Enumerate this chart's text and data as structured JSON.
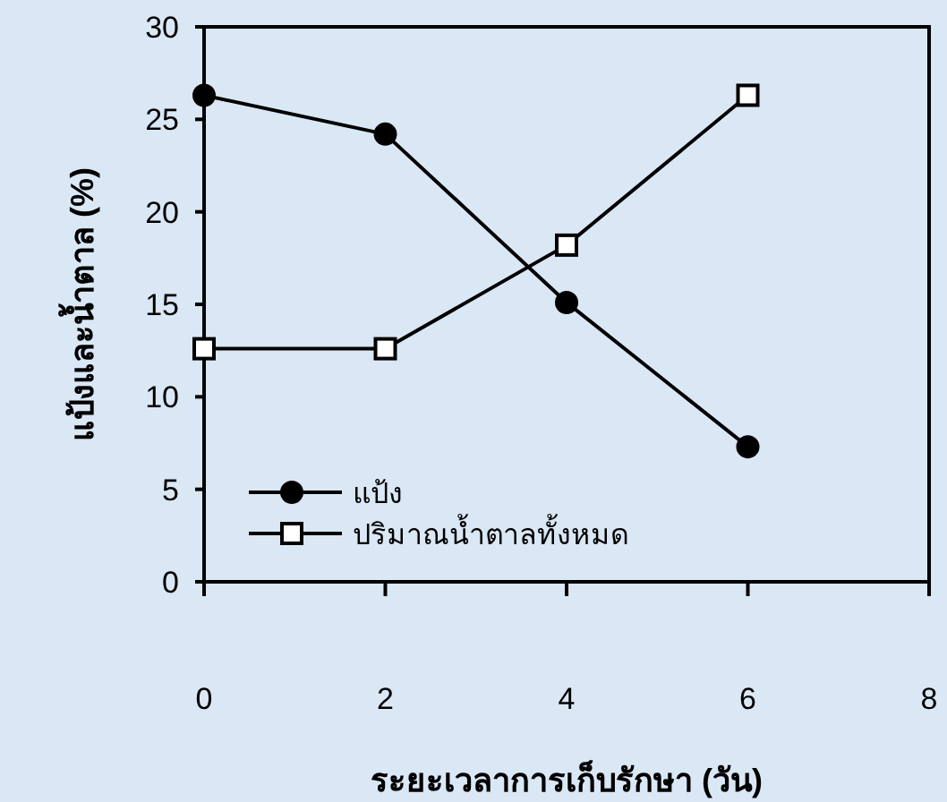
{
  "chart_data": {
    "type": "line",
    "xlabel": "ระยะเวลาการเก็บรักษา (วัน)",
    "ylabel": "แป้งและน้ำตาล (%)",
    "x": [
      0,
      2,
      4,
      6
    ],
    "xlim": [
      0,
      8
    ],
    "xticks": [
      0,
      2,
      4,
      6,
      8
    ],
    "ylim": [
      0,
      30
    ],
    "yticks": [
      0,
      5,
      10,
      15,
      20,
      25,
      30
    ],
    "series": [
      {
        "name": "แป้ง",
        "color": "#000000",
        "marker": "circle",
        "values": [
          26.3,
          24.2,
          15.1,
          7.3
        ]
      },
      {
        "name": "ปริมาณน้ำตาลทั้งหมด",
        "color": "#000000",
        "marker": "square",
        "values": [
          12.6,
          12.6,
          18.2,
          26.3
        ]
      }
    ],
    "legend": "bottom left",
    "grid": false
  }
}
